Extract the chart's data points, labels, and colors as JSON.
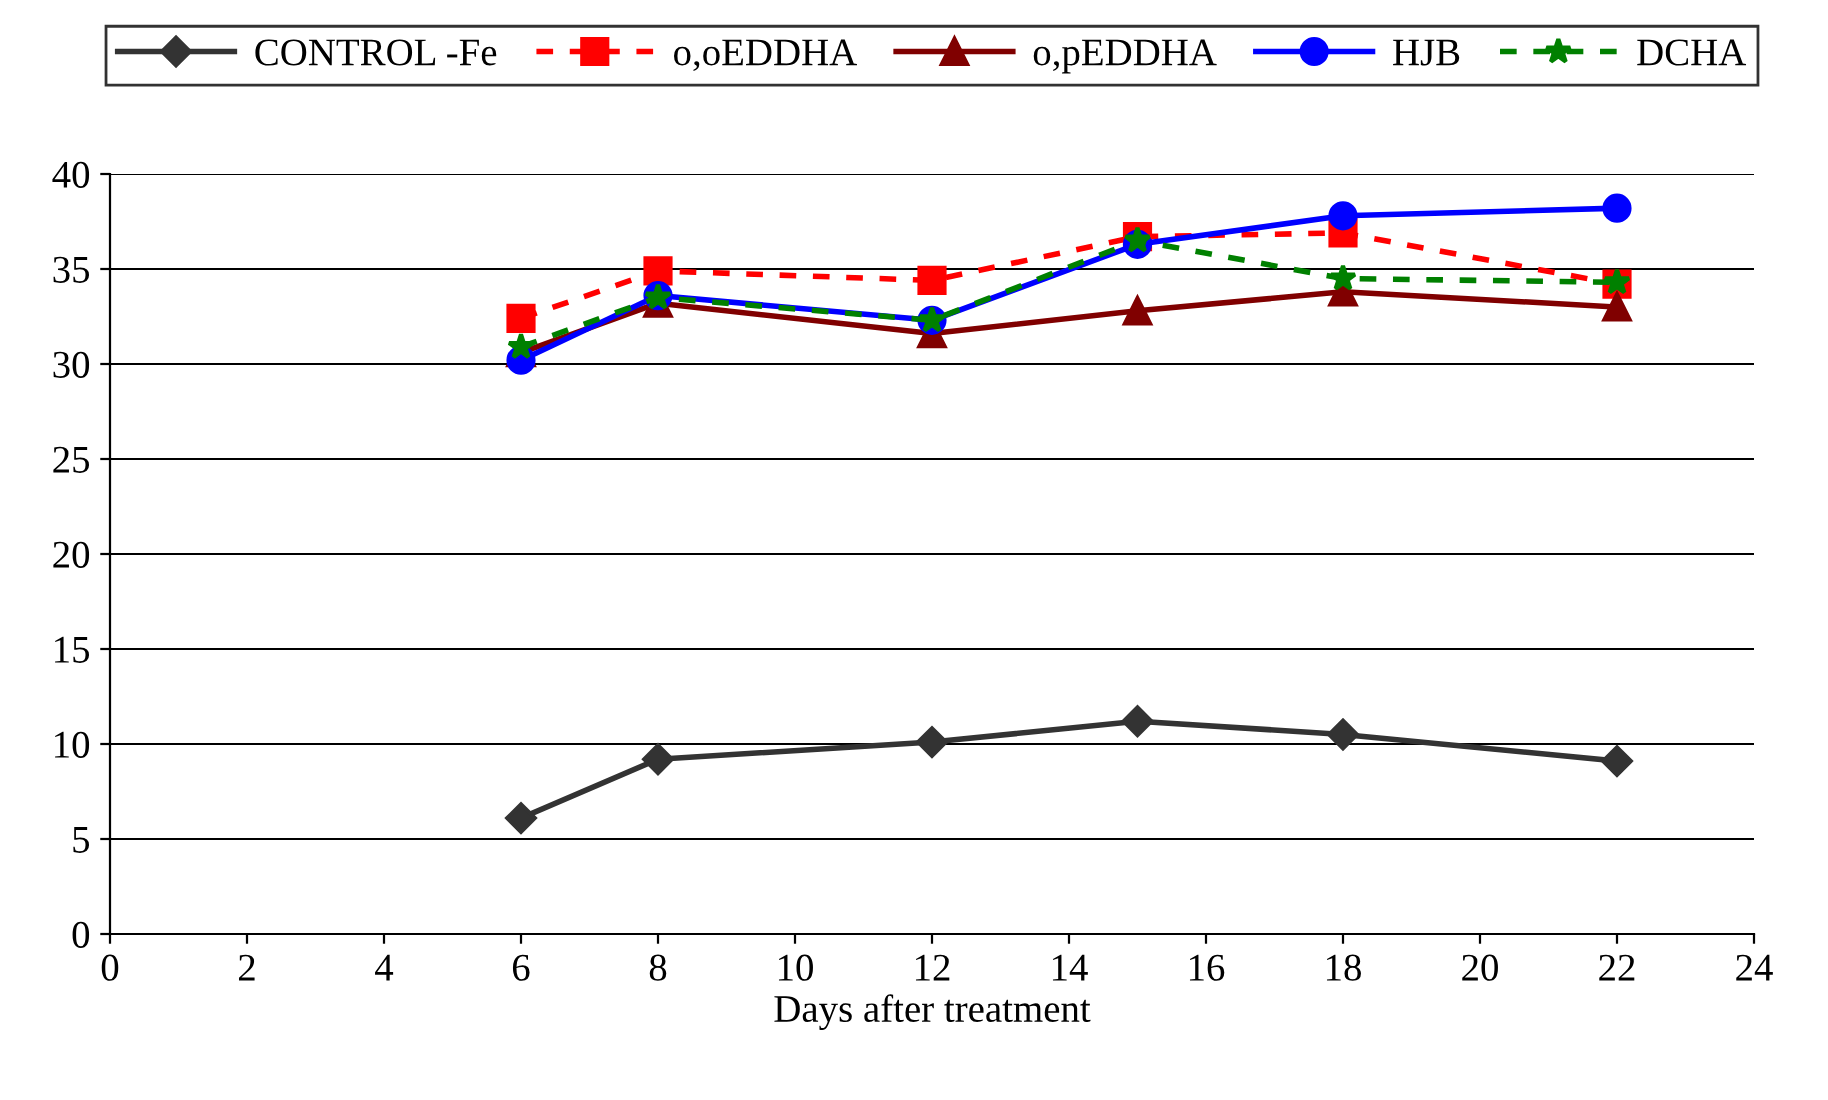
{
  "chart_data": {
    "type": "line",
    "xlabel": "Days after treatment",
    "x": [
      6,
      8,
      12,
      15,
      18,
      22
    ],
    "series": [
      {
        "name": "CONTROL -Fe",
        "color": "#333333",
        "marker": "diamond",
        "line_style": "solid",
        "values": [
          6.1,
          9.2,
          10.1,
          11.2,
          10.5,
          9.1
        ]
      },
      {
        "name": "o,oEDDHA",
        "color": "#ff0000",
        "marker": "square",
        "line_style": "dashed",
        "values": [
          32.4,
          34.9,
          34.4,
          36.7,
          36.9,
          34.2
        ]
      },
      {
        "name": "o,pEDDHA",
        "color": "#800000",
        "marker": "triangle",
        "line_style": "solid",
        "values": [
          30.6,
          33.2,
          31.6,
          32.8,
          33.8,
          33.0
        ]
      },
      {
        "name": "HJB",
        "color": "#0000ff",
        "marker": "circle",
        "line_style": "solid",
        "values": [
          30.2,
          33.6,
          32.3,
          36.3,
          37.8,
          38.2
        ]
      },
      {
        "name": "DCHA",
        "color": "#008000",
        "marker": "star",
        "line_style": "dashed",
        "values": [
          30.9,
          33.5,
          32.3,
          36.5,
          34.5,
          34.3
        ]
      }
    ],
    "xlim": [
      0,
      24
    ],
    "xticks": [
      0,
      2,
      4,
      6,
      8,
      10,
      12,
      14,
      16,
      18,
      20,
      22,
      24
    ],
    "ylim": [
      0,
      40
    ],
    "yticks": [
      0,
      5,
      10,
      15,
      20,
      25,
      30,
      35,
      40
    ],
    "grid": "y",
    "legend": "top"
  }
}
